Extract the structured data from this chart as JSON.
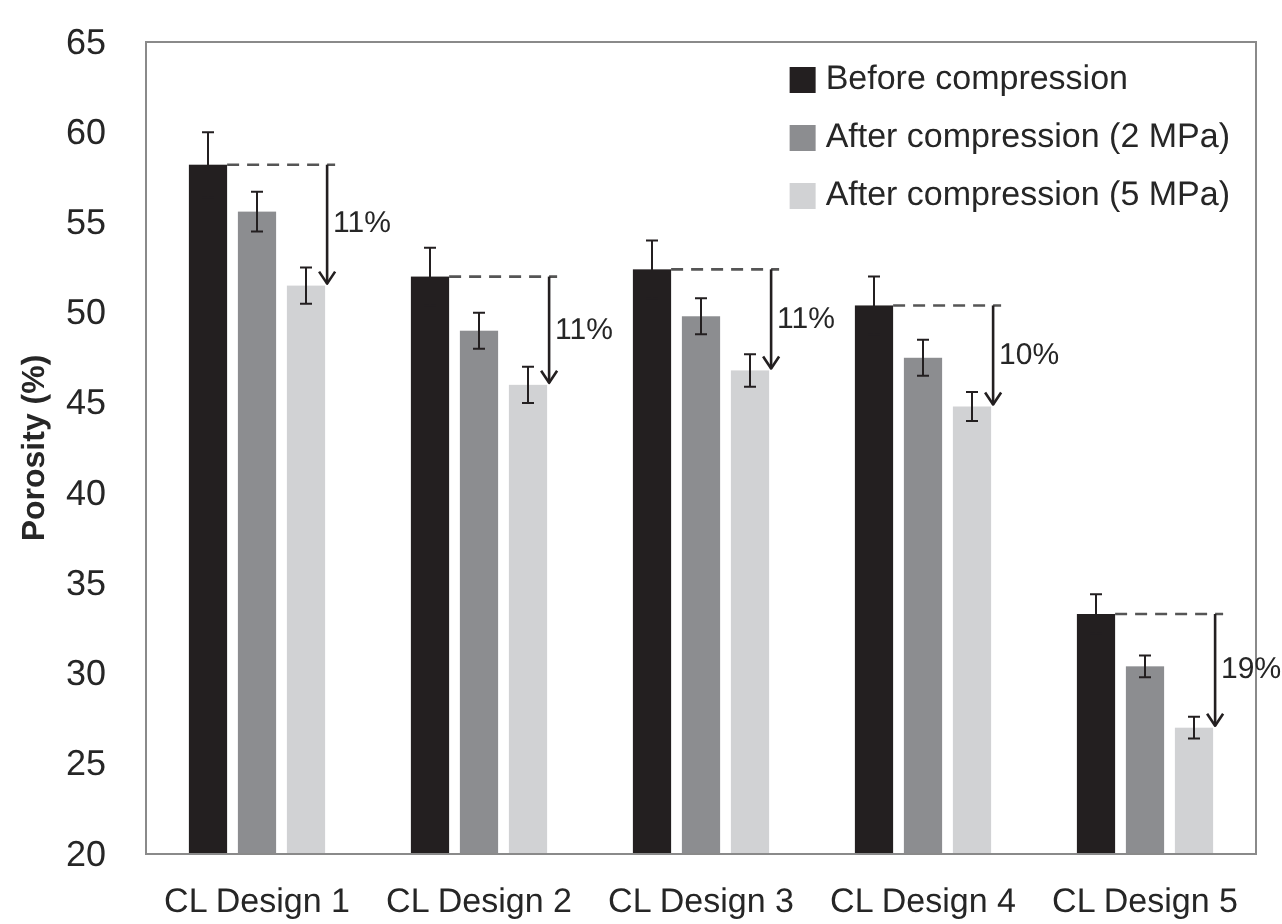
{
  "chart_data": {
    "type": "bar",
    "ylabel": "Porosity (%)",
    "categories": [
      "CL Design 1",
      "CL Design 2",
      "CL Design 3",
      "CL Design 4",
      "CL Design 5"
    ],
    "series": [
      {
        "name": "Before compression",
        "color": "#231f20",
        "values": [
          58.2,
          52.0,
          52.4,
          50.4,
          33.3
        ],
        "errors": [
          1.8,
          1.6,
          1.6,
          1.6,
          1.1
        ]
      },
      {
        "name": "After compression (2 MPa)",
        "color": "#8c8d90",
        "values": [
          55.6,
          49.0,
          49.8,
          47.5,
          30.4
        ],
        "errors": [
          1.1,
          1.0,
          1.0,
          1.0,
          0.6
        ]
      },
      {
        "name": "After compression (5 MPa)",
        "color": "#d1d2d4",
        "values": [
          51.5,
          46.0,
          46.8,
          44.8,
          27.0
        ],
        "errors": [
          1.0,
          1.0,
          0.9,
          0.8,
          0.6
        ]
      }
    ],
    "ylim": [
      20,
      65
    ],
    "yticks": [
      20,
      25,
      30,
      35,
      40,
      45,
      50,
      55,
      60,
      65
    ],
    "grid": false,
    "legend": "top right",
    "annotations": [
      {
        "text": "11%",
        "x": "CL Design 1",
        "y": 54.9
      },
      {
        "text": "11%",
        "x": "CL Design 2",
        "y": 49.0
      },
      {
        "text": "11%",
        "x": "CL Design 3",
        "y": 49.6
      },
      {
        "text": "10%",
        "x": "CL Design 4",
        "y": 47.6
      },
      {
        "text": "19%",
        "x": "CL Design 5",
        "y": 30.2
      }
    ]
  }
}
